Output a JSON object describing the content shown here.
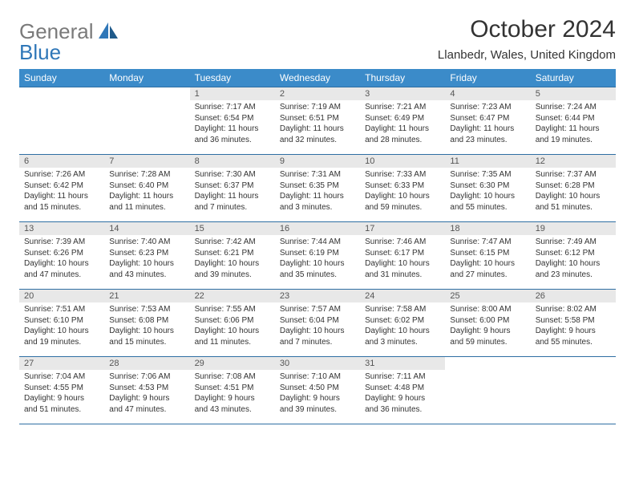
{
  "logo": {
    "text_gray": "General",
    "text_blue": "Blue"
  },
  "title": "October 2024",
  "location": "Llanbedr, Wales, United Kingdom",
  "day_headers": [
    "Sunday",
    "Monday",
    "Tuesday",
    "Wednesday",
    "Thursday",
    "Friday",
    "Saturday"
  ],
  "colors": {
    "header_bg": "#3b8bc9",
    "header_text": "#ffffff",
    "daynum_bg": "#e8e8e8",
    "border": "#2f6fa3",
    "logo_gray": "#7a7a7a",
    "logo_blue": "#2f77b8"
  },
  "weeks": [
    [
      null,
      null,
      {
        "n": "1",
        "sunrise": "Sunrise: 7:17 AM",
        "sunset": "Sunset: 6:54 PM",
        "daylight": "Daylight: 11 hours and 36 minutes."
      },
      {
        "n": "2",
        "sunrise": "Sunrise: 7:19 AM",
        "sunset": "Sunset: 6:51 PM",
        "daylight": "Daylight: 11 hours and 32 minutes."
      },
      {
        "n": "3",
        "sunrise": "Sunrise: 7:21 AM",
        "sunset": "Sunset: 6:49 PM",
        "daylight": "Daylight: 11 hours and 28 minutes."
      },
      {
        "n": "4",
        "sunrise": "Sunrise: 7:23 AM",
        "sunset": "Sunset: 6:47 PM",
        "daylight": "Daylight: 11 hours and 23 minutes."
      },
      {
        "n": "5",
        "sunrise": "Sunrise: 7:24 AM",
        "sunset": "Sunset: 6:44 PM",
        "daylight": "Daylight: 11 hours and 19 minutes."
      }
    ],
    [
      {
        "n": "6",
        "sunrise": "Sunrise: 7:26 AM",
        "sunset": "Sunset: 6:42 PM",
        "daylight": "Daylight: 11 hours and 15 minutes."
      },
      {
        "n": "7",
        "sunrise": "Sunrise: 7:28 AM",
        "sunset": "Sunset: 6:40 PM",
        "daylight": "Daylight: 11 hours and 11 minutes."
      },
      {
        "n": "8",
        "sunrise": "Sunrise: 7:30 AM",
        "sunset": "Sunset: 6:37 PM",
        "daylight": "Daylight: 11 hours and 7 minutes."
      },
      {
        "n": "9",
        "sunrise": "Sunrise: 7:31 AM",
        "sunset": "Sunset: 6:35 PM",
        "daylight": "Daylight: 11 hours and 3 minutes."
      },
      {
        "n": "10",
        "sunrise": "Sunrise: 7:33 AM",
        "sunset": "Sunset: 6:33 PM",
        "daylight": "Daylight: 10 hours and 59 minutes."
      },
      {
        "n": "11",
        "sunrise": "Sunrise: 7:35 AM",
        "sunset": "Sunset: 6:30 PM",
        "daylight": "Daylight: 10 hours and 55 minutes."
      },
      {
        "n": "12",
        "sunrise": "Sunrise: 7:37 AM",
        "sunset": "Sunset: 6:28 PM",
        "daylight": "Daylight: 10 hours and 51 minutes."
      }
    ],
    [
      {
        "n": "13",
        "sunrise": "Sunrise: 7:39 AM",
        "sunset": "Sunset: 6:26 PM",
        "daylight": "Daylight: 10 hours and 47 minutes."
      },
      {
        "n": "14",
        "sunrise": "Sunrise: 7:40 AM",
        "sunset": "Sunset: 6:23 PM",
        "daylight": "Daylight: 10 hours and 43 minutes."
      },
      {
        "n": "15",
        "sunrise": "Sunrise: 7:42 AM",
        "sunset": "Sunset: 6:21 PM",
        "daylight": "Daylight: 10 hours and 39 minutes."
      },
      {
        "n": "16",
        "sunrise": "Sunrise: 7:44 AM",
        "sunset": "Sunset: 6:19 PM",
        "daylight": "Daylight: 10 hours and 35 minutes."
      },
      {
        "n": "17",
        "sunrise": "Sunrise: 7:46 AM",
        "sunset": "Sunset: 6:17 PM",
        "daylight": "Daylight: 10 hours and 31 minutes."
      },
      {
        "n": "18",
        "sunrise": "Sunrise: 7:47 AM",
        "sunset": "Sunset: 6:15 PM",
        "daylight": "Daylight: 10 hours and 27 minutes."
      },
      {
        "n": "19",
        "sunrise": "Sunrise: 7:49 AM",
        "sunset": "Sunset: 6:12 PM",
        "daylight": "Daylight: 10 hours and 23 minutes."
      }
    ],
    [
      {
        "n": "20",
        "sunrise": "Sunrise: 7:51 AM",
        "sunset": "Sunset: 6:10 PM",
        "daylight": "Daylight: 10 hours and 19 minutes."
      },
      {
        "n": "21",
        "sunrise": "Sunrise: 7:53 AM",
        "sunset": "Sunset: 6:08 PM",
        "daylight": "Daylight: 10 hours and 15 minutes."
      },
      {
        "n": "22",
        "sunrise": "Sunrise: 7:55 AM",
        "sunset": "Sunset: 6:06 PM",
        "daylight": "Daylight: 10 hours and 11 minutes."
      },
      {
        "n": "23",
        "sunrise": "Sunrise: 7:57 AM",
        "sunset": "Sunset: 6:04 PM",
        "daylight": "Daylight: 10 hours and 7 minutes."
      },
      {
        "n": "24",
        "sunrise": "Sunrise: 7:58 AM",
        "sunset": "Sunset: 6:02 PM",
        "daylight": "Daylight: 10 hours and 3 minutes."
      },
      {
        "n": "25",
        "sunrise": "Sunrise: 8:00 AM",
        "sunset": "Sunset: 6:00 PM",
        "daylight": "Daylight: 9 hours and 59 minutes."
      },
      {
        "n": "26",
        "sunrise": "Sunrise: 8:02 AM",
        "sunset": "Sunset: 5:58 PM",
        "daylight": "Daylight: 9 hours and 55 minutes."
      }
    ],
    [
      {
        "n": "27",
        "sunrise": "Sunrise: 7:04 AM",
        "sunset": "Sunset: 4:55 PM",
        "daylight": "Daylight: 9 hours and 51 minutes."
      },
      {
        "n": "28",
        "sunrise": "Sunrise: 7:06 AM",
        "sunset": "Sunset: 4:53 PM",
        "daylight": "Daylight: 9 hours and 47 minutes."
      },
      {
        "n": "29",
        "sunrise": "Sunrise: 7:08 AM",
        "sunset": "Sunset: 4:51 PM",
        "daylight": "Daylight: 9 hours and 43 minutes."
      },
      {
        "n": "30",
        "sunrise": "Sunrise: 7:10 AM",
        "sunset": "Sunset: 4:50 PM",
        "daylight": "Daylight: 9 hours and 39 minutes."
      },
      {
        "n": "31",
        "sunrise": "Sunrise: 7:11 AM",
        "sunset": "Sunset: 4:48 PM",
        "daylight": "Daylight: 9 hours and 36 minutes."
      },
      null,
      null
    ]
  ]
}
